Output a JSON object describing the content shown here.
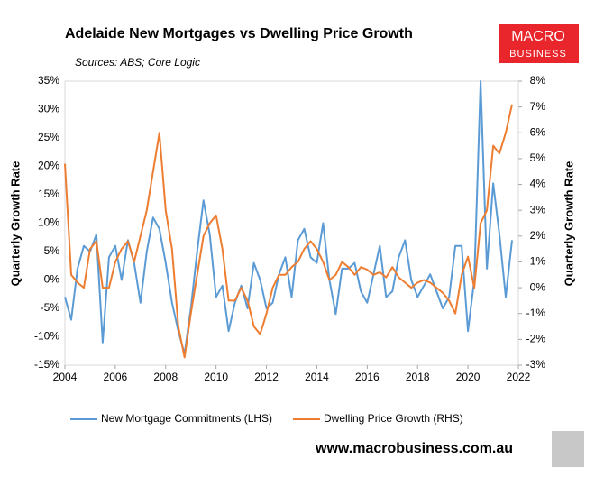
{
  "chart_data": {
    "type": "line",
    "title": "Adelaide New Mortgages vs Dwelling Price Growth",
    "subtitle": "Sources: ABS; Core Logic",
    "logo": [
      "MACRO",
      "BUSINESS"
    ],
    "footer": "www.macrobusiness.com.au",
    "y_label": "Quarterly  Growth Rate",
    "y2_label": "Quarterly Growth Rate",
    "x": [
      2004,
      2004.25,
      2004.5,
      2004.75,
      2005,
      2005.25,
      2005.5,
      2005.75,
      2006,
      2006.25,
      2006.5,
      2006.75,
      2007,
      2007.25,
      2007.5,
      2007.75,
      2008,
      2008.25,
      2008.5,
      2008.75,
      2009,
      2009.25,
      2009.5,
      2009.75,
      2010,
      2010.25,
      2010.5,
      2010.75,
      2011,
      2011.25,
      2011.5,
      2011.75,
      2012,
      2012.25,
      2012.5,
      2012.75,
      2013,
      2013.25,
      2013.5,
      2013.75,
      2014,
      2014.25,
      2014.5,
      2014.75,
      2015,
      2015.25,
      2015.5,
      2015.75,
      2016,
      2016.25,
      2016.5,
      2016.75,
      2017,
      2017.25,
      2017.5,
      2017.75,
      2018,
      2018.25,
      2018.5,
      2018.75,
      2019,
      2019.25,
      2019.5,
      2019.75,
      2020,
      2020.25,
      2020.5,
      2020.75,
      2021,
      2021.25,
      2021.5,
      2021.75
    ],
    "xlim": [
      2004,
      2022
    ],
    "xticks": [
      2004,
      2006,
      2008,
      2010,
      2012,
      2014,
      2016,
      2018,
      2020,
      2022
    ],
    "ylim": [
      -15,
      35
    ],
    "yticks": [
      {
        "value": -15,
        "label": "-15%"
      },
      {
        "value": -10,
        "label": "-10%"
      },
      {
        "value": -5,
        "label": "-5%"
      },
      {
        "value": 0,
        "label": "0%"
      },
      {
        "value": 5,
        "label": "5%"
      },
      {
        "value": 10,
        "label": "10%"
      },
      {
        "value": 15,
        "label": "15%"
      },
      {
        "value": 20,
        "label": "20%"
      },
      {
        "value": 25,
        "label": "25%"
      },
      {
        "value": 30,
        "label": "30%"
      },
      {
        "value": 35,
        "label": "35%"
      }
    ],
    "y2lim": [
      -3,
      8
    ],
    "y2ticks": [
      {
        "value": -3,
        "label": "-3%"
      },
      {
        "value": -2,
        "label": "-2%"
      },
      {
        "value": -1,
        "label": "-1%"
      },
      {
        "value": 0,
        "label": "0%"
      },
      {
        "value": 1,
        "label": "1%"
      },
      {
        "value": 2,
        "label": "2%"
      },
      {
        "value": 3,
        "label": "3%"
      },
      {
        "value": 4,
        "label": "4%"
      },
      {
        "value": 5,
        "label": "5%"
      },
      {
        "value": 6,
        "label": "6%"
      },
      {
        "value": 7,
        "label": "7%"
      },
      {
        "value": 8,
        "label": "8%"
      }
    ],
    "series": [
      {
        "name": "New Mortgage Commitments (LHS)",
        "color": "#5b9bd5",
        "axis": "y",
        "values": [
          -3,
          -7,
          2,
          6,
          5,
          8,
          -11,
          4,
          6,
          0,
          7,
          3,
          -4,
          5,
          11,
          9,
          3,
          -4,
          -9,
          -13,
          -5,
          5,
          14,
          8,
          -3,
          -1,
          -9,
          -4,
          -1,
          -5,
          3,
          0,
          -5,
          -4,
          1,
          4,
          -3,
          7,
          9,
          4,
          3,
          10,
          0,
          -6,
          2,
          2,
          3,
          -2,
          -4,
          1,
          6,
          -3,
          -2,
          4,
          7,
          0,
          -3,
          -1,
          1,
          -2,
          -5,
          -3,
          6,
          6,
          -9,
          0,
          35,
          2,
          17,
          8,
          -3,
          7
        ]
      },
      {
        "name": "Dwelling Price Growth (RHS)",
        "color": "#ed7d31",
        "axis": "y2",
        "values": [
          4.8,
          0.5,
          0.2,
          0,
          1.5,
          1.8,
          0,
          0,
          1.0,
          1.5,
          1.8,
          1.0,
          2.0,
          3.0,
          4.5,
          6.0,
          3.0,
          1.5,
          -1.5,
          -2.7,
          -1.0,
          0.5,
          2.0,
          2.5,
          2.8,
          1.5,
          -0.5,
          -0.5,
          0,
          -0.5,
          -1.5,
          -1.8,
          -1.0,
          0,
          0.5,
          0.5,
          0.8,
          1.0,
          1.5,
          1.8,
          1.5,
          1.0,
          0.3,
          0.5,
          1.0,
          0.8,
          0.5,
          0.8,
          0.7,
          0.5,
          0.6,
          0.4,
          0.8,
          0.4,
          0.2,
          0.0,
          0.2,
          0.3,
          0.2,
          0.0,
          -0.2,
          -0.5,
          -1.0,
          0.5,
          1.2,
          0,
          2.5,
          3.0,
          5.5,
          5.2,
          6.0,
          7.1
        ]
      }
    ]
  }
}
